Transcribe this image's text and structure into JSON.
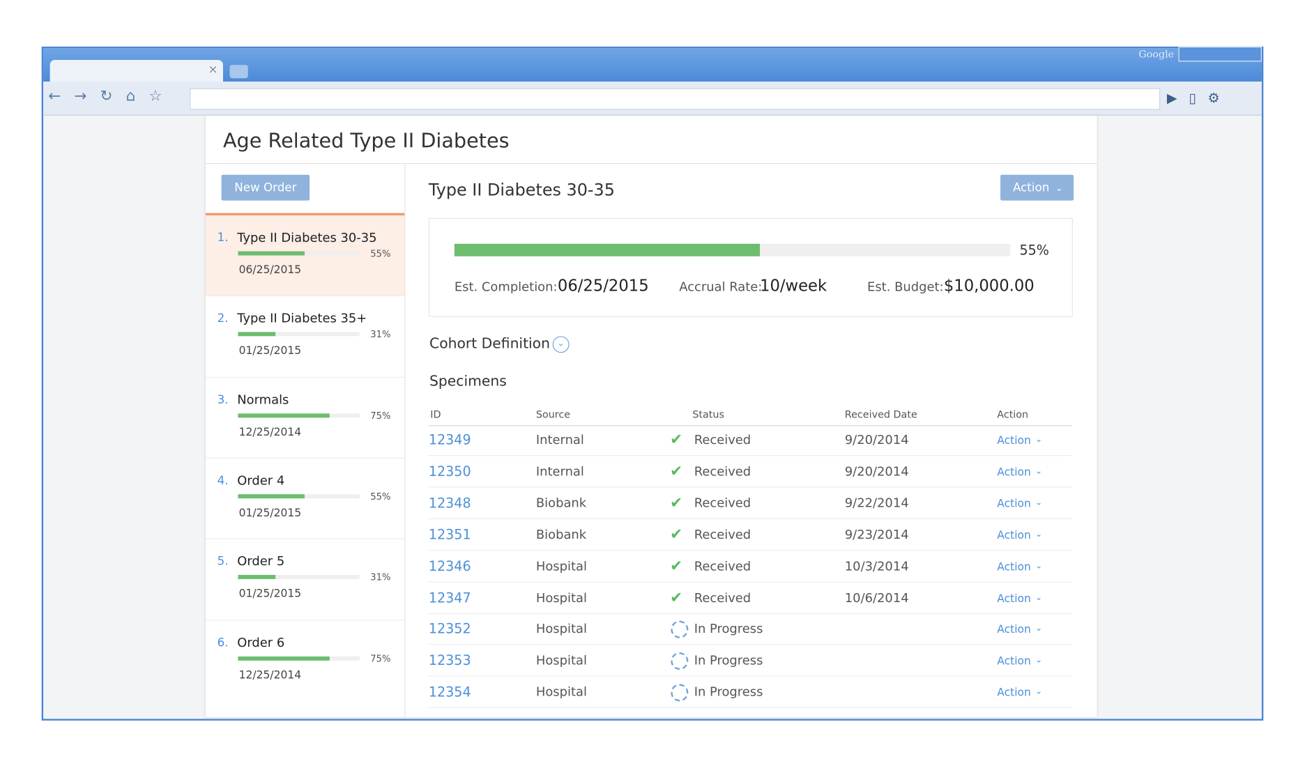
{
  "browser": {
    "brand": "Google"
  },
  "header": {
    "title": "Age Related Type II Diabetes"
  },
  "sidebar": {
    "button": "New Order",
    "orders": [
      {
        "number": "1.",
        "name": "Type II Diabetes 30-35",
        "progress": 55,
        "progress_label": "55%",
        "date": "06/25/2015"
      },
      {
        "number": "2.",
        "name": "Type II Diabetes 35+",
        "progress": 31,
        "progress_label": "31%",
        "date": "01/25/2015"
      },
      {
        "number": "3.",
        "name": "Normals",
        "progress": 75,
        "progress_label": "75%",
        "date": "12/25/2014"
      },
      {
        "number": "4.",
        "name": "Order 4",
        "progress": 55,
        "progress_label": "55%",
        "date": "01/25/2015"
      },
      {
        "number": "5.",
        "name": "Order 5",
        "progress": 31,
        "progress_label": "31%",
        "date": "01/25/2015"
      },
      {
        "number": "6.",
        "name": "Order 6",
        "progress": 75,
        "progress_label": "75%",
        "date": "12/25/2014"
      }
    ]
  },
  "main": {
    "title": "Type II Diabetes 30-35",
    "action": "Action",
    "summary": {
      "progress": 55,
      "progress_label": "55%",
      "stats": [
        {
          "label": "Est. Completion:",
          "value": "06/25/2015"
        },
        {
          "label": "Accrual Rate:",
          "value": "10/week"
        },
        {
          "label": "Est. Budget:",
          "value": "$10,000.00"
        }
      ]
    },
    "cohort": "Cohort Definition",
    "specimens": {
      "title": "Specimens",
      "columns": [
        "ID",
        "Source",
        "Status",
        "Received Date",
        "Action"
      ],
      "rows": [
        [
          "12349",
          "Internal",
          "Received",
          "9/20/2014",
          "Action"
        ],
        [
          "12350",
          "Internal",
          "Received",
          "9/20/2014",
          "Action"
        ],
        [
          "12348",
          "Biobank",
          "Received",
          "9/22/2014",
          "Action"
        ],
        [
          "12351",
          "Biobank",
          "Received",
          "9/23/2014",
          "Action"
        ],
        [
          "12346",
          "Hospital",
          "Received",
          "10/3/2014",
          "Action"
        ],
        [
          "12347",
          "Hospital",
          "Received",
          "10/6/2014",
          "Action"
        ],
        [
          "12352",
          "Hospital",
          "In Progress",
          null,
          "Action"
        ],
        [
          "12353",
          "Hospital",
          "In Progress",
          null,
          "Action"
        ],
        [
          "12354",
          "Hospital",
          "In Progress",
          null,
          "Action"
        ]
      ]
    }
  }
}
